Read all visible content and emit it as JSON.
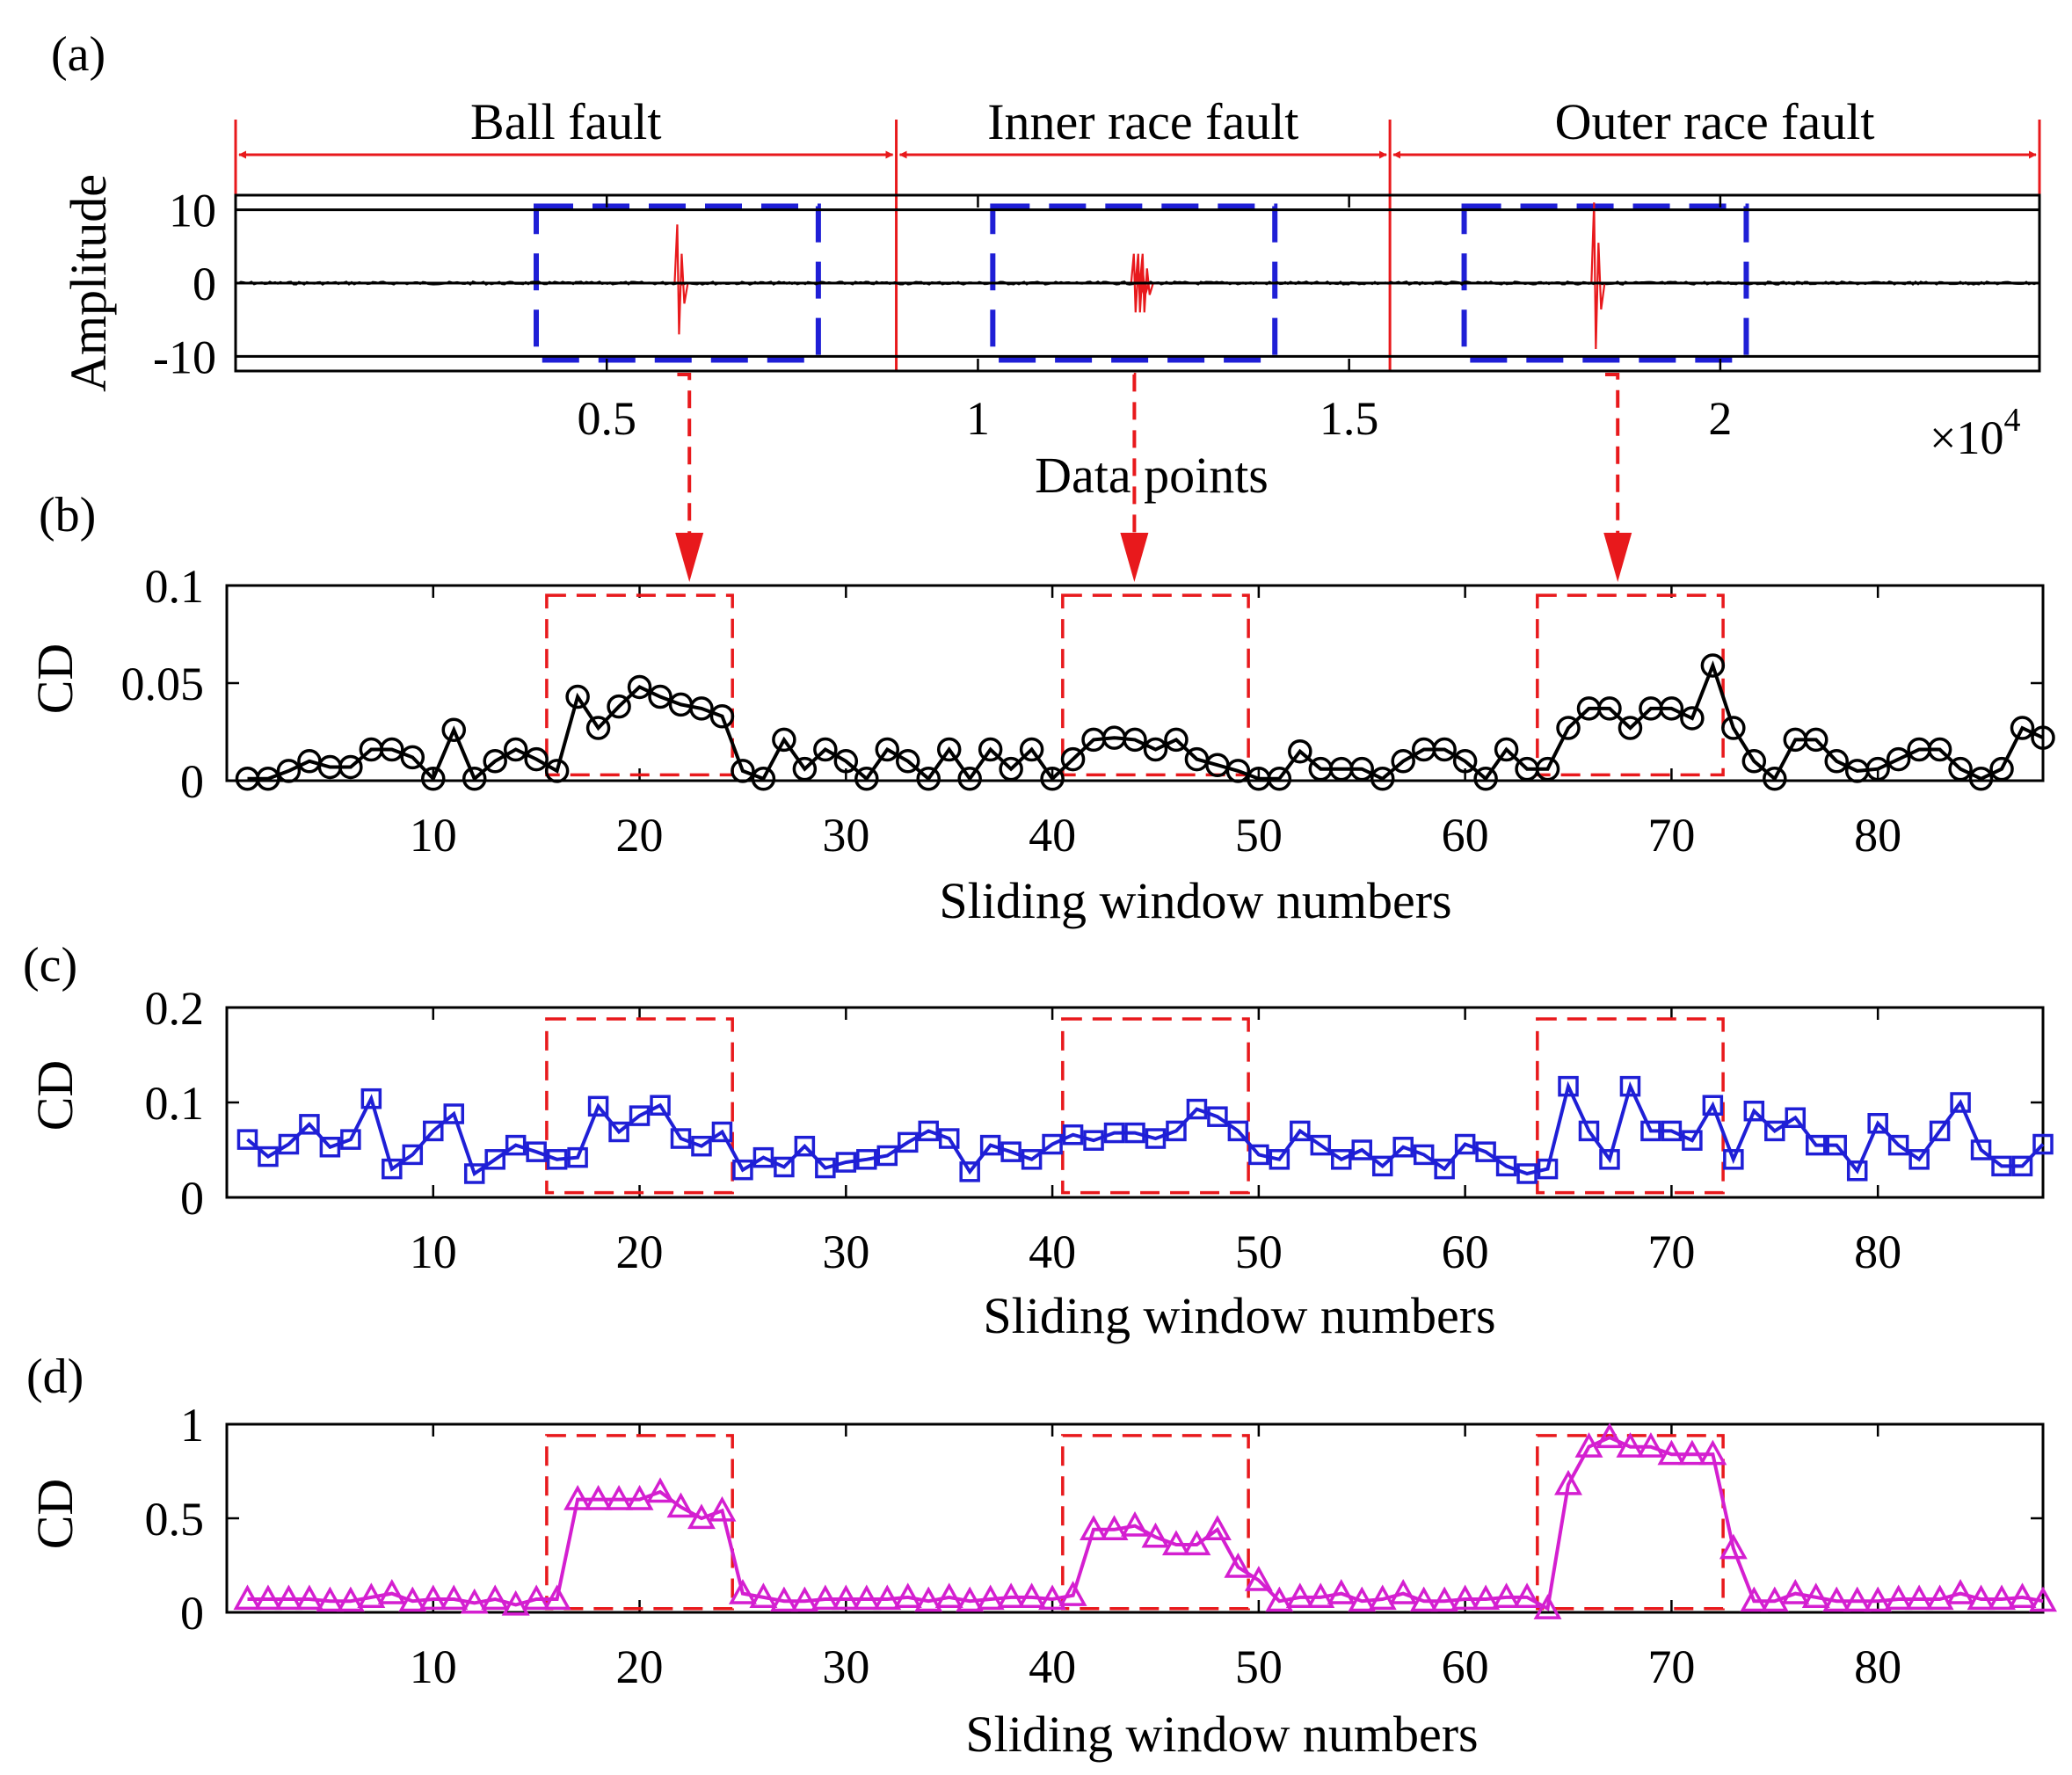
{
  "chart_data": [
    {
      "panel_label": "(a)",
      "type": "line",
      "xlabel": "Data points",
      "ylabel": "Amplitude",
      "x_multiplier_label": "×10",
      "x_multiplier_exp": "4",
      "xlim": [
        0,
        2.43
      ],
      "ylim": [
        -12,
        12
      ],
      "xticks": [
        0.5,
        1,
        1.5,
        2
      ],
      "xtick_labels": [
        "0.5",
        "1",
        "1.5",
        "2"
      ],
      "yticks": [
        10,
        0,
        -10
      ],
      "ytick_labels": [
        "10",
        "0",
        "-10"
      ],
      "series_color": "#000000",
      "fault_color": "#e8191c",
      "box_color": "#1f1fd6",
      "segments": [
        {
          "label": "Ball fault",
          "x_start": 0,
          "x_end": 0.89
        },
        {
          "label": "Inner race fault",
          "x_start": 0.89,
          "x_end": 1.555
        },
        {
          "label": "Outer race fault",
          "x_start": 1.555,
          "x_end": 2.43
        }
      ],
      "zoom_boxes": [
        {
          "x_start": 0.405,
          "x_end": 0.785,
          "y_start": -10.5,
          "y_end": 10.5,
          "target_window": 23
        },
        {
          "x_start": 1.02,
          "x_end": 1.4,
          "y_start": -10.5,
          "y_end": 10.5,
          "target_window": 44
        },
        {
          "x_start": 1.655,
          "x_end": 2.035,
          "y_start": -10.5,
          "y_end": 10.5,
          "target_window": 68
        }
      ],
      "impulses": [
        {
          "x": 0.595,
          "peak": 8,
          "trough": -7
        },
        {
          "x": 1.21,
          "peak": 4,
          "trough": -4,
          "cluster": true
        },
        {
          "x": 1.83,
          "peak": 11,
          "trough": -9
        }
      ]
    },
    {
      "panel_label": "(b)",
      "type": "line",
      "marker": "circle",
      "xlabel": "Sliding window numbers",
      "ylabel": "CD",
      "xlim": [
        0,
        88
      ],
      "ylim": [
        0,
        0.1
      ],
      "xticks": [
        10,
        20,
        30,
        40,
        50,
        60,
        70,
        80
      ],
      "yticks": [
        0,
        0.05,
        0.1
      ],
      "ytick_labels": [
        "0",
        "0.05",
        "0.1"
      ],
      "color": "#000000",
      "fault_boxes": [
        {
          "x_start": 15.5,
          "x_end": 24.5,
          "y_start": 0.003,
          "y_end": 0.095
        },
        {
          "x_start": 40.5,
          "x_end": 49.5,
          "y_start": 0.003,
          "y_end": 0.095
        },
        {
          "x_start": 63.5,
          "x_end": 72.5,
          "y_start": 0.003,
          "y_end": 0.095
        }
      ],
      "values": [
        0.001,
        0.001,
        0.005,
        0.01,
        0.007,
        0.007,
        0.016,
        0.016,
        0.012,
        0.001,
        0.026,
        0.001,
        0.01,
        0.016,
        0.011,
        0.005,
        0.043,
        0.027,
        0.038,
        0.048,
        0.043,
        0.039,
        0.037,
        0.033,
        0.005,
        0.001,
        0.021,
        0.006,
        0.016,
        0.01,
        0.001,
        0.016,
        0.01,
        0.001,
        0.016,
        0.001,
        0.016,
        0.006,
        0.016,
        0.001,
        0.011,
        0.021,
        0.022,
        0.021,
        0.016,
        0.021,
        0.011,
        0.008,
        0.005,
        0.001,
        0.001,
        0.015,
        0.006,
        0.006,
        0.006,
        0.001,
        0.01,
        0.016,
        0.016,
        0.01,
        0.001,
        0.016,
        0.006,
        0.006,
        0.027,
        0.037,
        0.037,
        0.027,
        0.037,
        0.037,
        0.032,
        0.059,
        0.027,
        0.01,
        0.001,
        0.021,
        0.021,
        0.01,
        0.005,
        0.006,
        0.011,
        0.016,
        0.016,
        0.006,
        0.001,
        0.006,
        0.027,
        0.022
      ]
    },
    {
      "panel_label": "(c)",
      "type": "line",
      "marker": "square",
      "xlabel": "Sliding window numbers",
      "ylabel": "CD",
      "xlim": [
        0,
        88
      ],
      "ylim": [
        0,
        0.2
      ],
      "xticks": [
        10,
        20,
        30,
        40,
        50,
        60,
        70,
        80
      ],
      "yticks": [
        0,
        0.1,
        0.2
      ],
      "ytick_labels": [
        "0",
        "0.1",
        "0.2"
      ],
      "color": "#1f1fd6",
      "fault_boxes": [
        {
          "x_start": 15.5,
          "x_end": 24.5,
          "y_start": 0.005,
          "y_end": 0.188
        },
        {
          "x_start": 40.5,
          "x_end": 49.5,
          "y_start": 0.005,
          "y_end": 0.188
        },
        {
          "x_start": 63.5,
          "x_end": 72.5,
          "y_start": 0.005,
          "y_end": 0.188
        }
      ],
      "values": [
        0.061,
        0.043,
        0.056,
        0.077,
        0.053,
        0.061,
        0.104,
        0.03,
        0.045,
        0.07,
        0.088,
        0.025,
        0.04,
        0.055,
        0.048,
        0.04,
        0.042,
        0.096,
        0.069,
        0.086,
        0.097,
        0.062,
        0.054,
        0.069,
        0.029,
        0.042,
        0.032,
        0.054,
        0.031,
        0.037,
        0.04,
        0.044,
        0.058,
        0.07,
        0.062,
        0.027,
        0.055,
        0.048,
        0.04,
        0.056,
        0.066,
        0.06,
        0.068,
        0.068,
        0.062,
        0.07,
        0.093,
        0.085,
        0.07,
        0.045,
        0.04,
        0.07,
        0.055,
        0.04,
        0.05,
        0.033,
        0.053,
        0.045,
        0.03,
        0.056,
        0.048,
        0.033,
        0.025,
        0.03,
        0.117,
        0.07,
        0.04,
        0.117,
        0.07,
        0.07,
        0.06,
        0.097,
        0.04,
        0.091,
        0.07,
        0.084,
        0.055,
        0.055,
        0.028,
        0.078,
        0.055,
        0.04,
        0.07,
        0.1,
        0.05,
        0.033,
        0.033,
        0.056
      ]
    },
    {
      "panel_label": "(d)",
      "type": "line",
      "marker": "triangle",
      "xlabel": "Sliding window numbers",
      "ylabel": "CD",
      "xlim": [
        0,
        88
      ],
      "ylim": [
        0,
        1
      ],
      "xticks": [
        10,
        20,
        30,
        40,
        50,
        60,
        70,
        80
      ],
      "yticks": [
        0,
        0.5,
        1
      ],
      "ytick_labels": [
        "0",
        "0.5",
        "1"
      ],
      "color": "#d41fd0",
      "fault_boxes": [
        {
          "x_start": 15.5,
          "x_end": 24.5,
          "y_start": 0.02,
          "y_end": 0.94
        },
        {
          "x_start": 40.5,
          "x_end": 49.5,
          "y_start": 0.02,
          "y_end": 0.94
        },
        {
          "x_start": 63.5,
          "x_end": 72.5,
          "y_start": 0.02,
          "y_end": 0.94
        }
      ],
      "values": [
        0.07,
        0.07,
        0.07,
        0.07,
        0.06,
        0.06,
        0.08,
        0.1,
        0.06,
        0.07,
        0.07,
        0.05,
        0.07,
        0.04,
        0.07,
        0.07,
        0.6,
        0.6,
        0.6,
        0.6,
        0.64,
        0.56,
        0.5,
        0.54,
        0.1,
        0.08,
        0.06,
        0.06,
        0.07,
        0.07,
        0.07,
        0.07,
        0.08,
        0.06,
        0.08,
        0.06,
        0.07,
        0.08,
        0.08,
        0.07,
        0.09,
        0.44,
        0.44,
        0.46,
        0.4,
        0.36,
        0.36,
        0.44,
        0.24,
        0.17,
        0.06,
        0.08,
        0.08,
        0.1,
        0.06,
        0.07,
        0.1,
        0.06,
        0.06,
        0.07,
        0.07,
        0.08,
        0.08,
        0.02,
        0.68,
        0.88,
        0.93,
        0.88,
        0.88,
        0.84,
        0.84,
        0.84,
        0.34,
        0.06,
        0.06,
        0.1,
        0.08,
        0.06,
        0.06,
        0.06,
        0.07,
        0.07,
        0.07,
        0.1,
        0.07,
        0.07,
        0.08,
        0.06
      ]
    }
  ]
}
